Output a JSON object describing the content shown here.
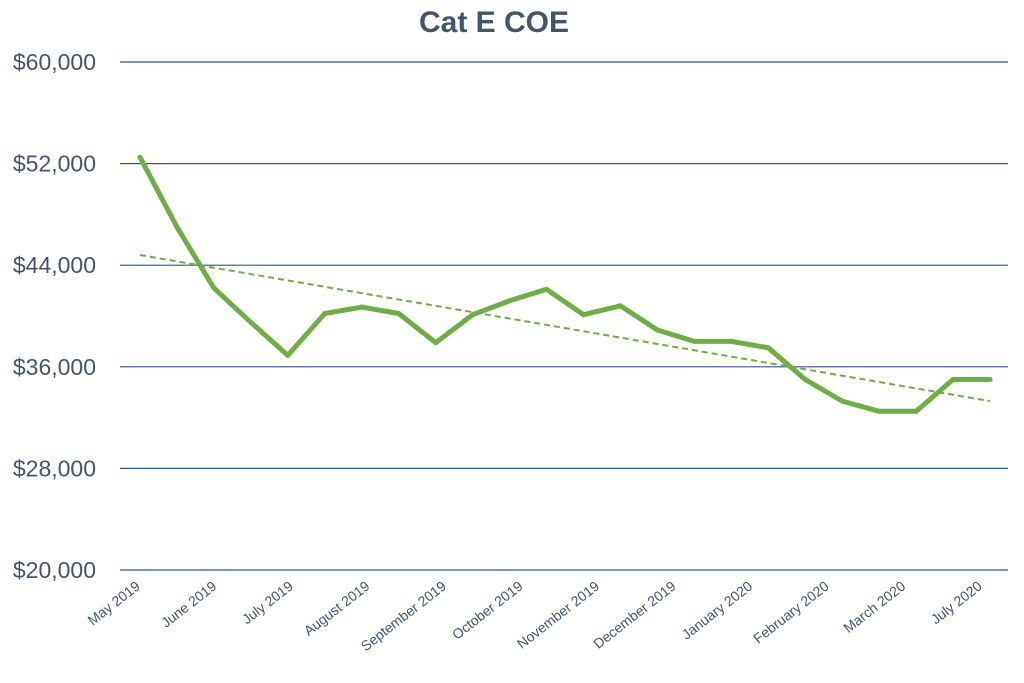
{
  "chart_data": {
    "type": "line",
    "title": "Cat E COE",
    "xlabel": "",
    "ylabel": "",
    "ylim": [
      20000,
      60000
    ],
    "ytick_values": [
      20000,
      28000,
      36000,
      44000,
      52000,
      60000
    ],
    "ytick_labels": [
      "$20,000",
      "$28,000",
      "$36,000",
      "$44,000",
      "$52,000",
      "$60,000"
    ],
    "xtick_labels": [
      "May 2019",
      "June 2019",
      "July 2019",
      "August 2019",
      "September 2019",
      "October 2019",
      "November 2019",
      "December 2019",
      "January 2020",
      "February 2020",
      "March 2020",
      "July 2020"
    ],
    "grid": true,
    "legend": "none",
    "series": [
      {
        "name": "Cat E COE",
        "color": "#70ad47",
        "style": "solid",
        "values": [
          52500,
          47000,
          42200,
          39500,
          36900,
          40200,
          40700,
          40200,
          37900,
          40100,
          41200,
          42100,
          40100,
          40800,
          38900,
          38000,
          38000,
          37500,
          35000,
          33300,
          32500,
          32500,
          35000,
          35000
        ]
      },
      {
        "name": "Linear trend",
        "color": "#70ad47",
        "style": "dashed",
        "start_value": 44800,
        "end_value": 33300
      }
    ]
  }
}
